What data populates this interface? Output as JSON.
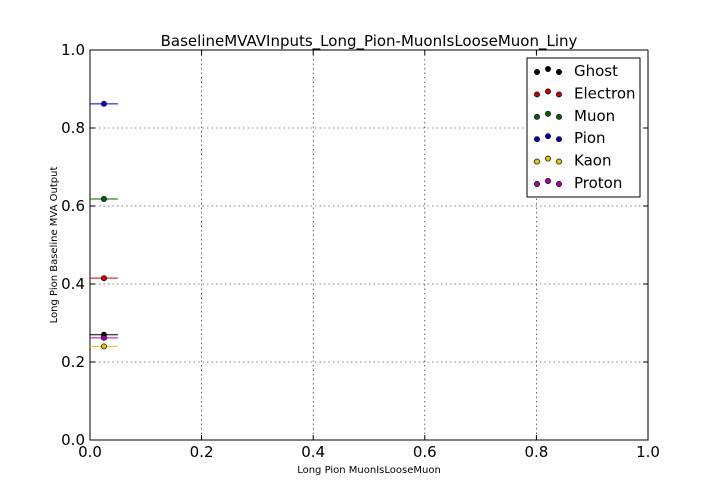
{
  "chart_data": {
    "type": "scatter",
    "title": "BaselineMVAVInputs_Long_Pion-MuonIsLooseMuon_Liny",
    "xlabel": "Long Pion MuonIsLooseMuon",
    "ylabel": "Long Pion Baseline MVA Output",
    "xlim": [
      0.0,
      1.0
    ],
    "ylim": [
      0.0,
      1.0
    ],
    "xticks": [
      "0.0",
      "0.2",
      "0.4",
      "0.6",
      "0.8",
      "1.0"
    ],
    "yticks": [
      "0.0",
      "0.2",
      "0.4",
      "0.6",
      "0.8",
      "1.0"
    ],
    "grid": true,
    "legend_position": "top-right",
    "series": [
      {
        "name": "Ghost",
        "color": "#000000",
        "x": 0.025,
        "y": 0.27,
        "xerr": 0.025
      },
      {
        "name": "Electron",
        "color": "#cc0000",
        "x": 0.025,
        "y": 0.415,
        "xerr": 0.025
      },
      {
        "name": "Muon",
        "color": "#006400",
        "x": 0.025,
        "y": 0.618,
        "xerr": 0.025
      },
      {
        "name": "Pion",
        "color": "#0000cc",
        "x": 0.025,
        "y": 0.862,
        "xerr": 0.025
      },
      {
        "name": "Kaon",
        "color": "#e6c200",
        "x": 0.025,
        "y": 0.24,
        "xerr": 0.025
      },
      {
        "name": "Proton",
        "color": "#aa00aa",
        "x": 0.025,
        "y": 0.262,
        "xerr": 0.025
      }
    ]
  }
}
